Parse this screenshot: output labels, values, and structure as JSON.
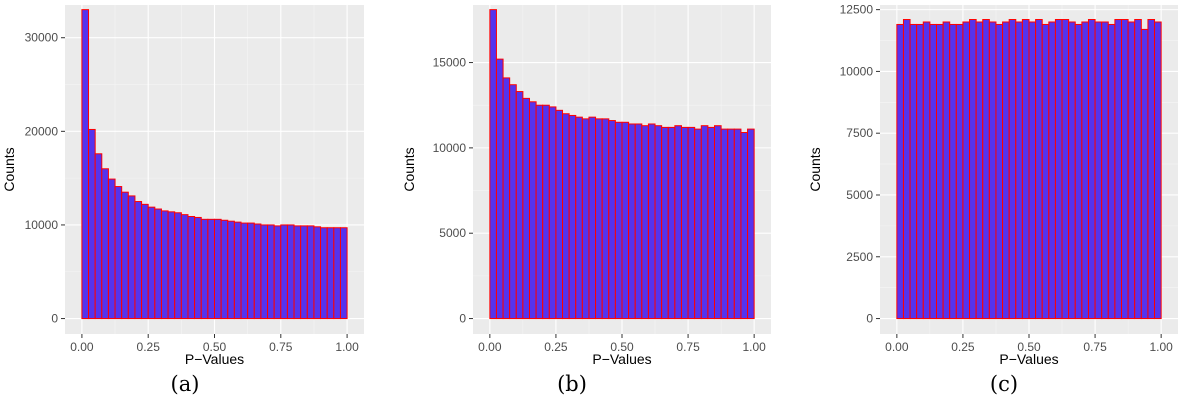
{
  "colors": {
    "bar_fill": "#5533ee",
    "bar_outline": "#ff0000",
    "panel_bg": "#ebebeb",
    "grid": "#ffffff"
  },
  "chart_data": [
    {
      "type": "bar",
      "caption": "(a)",
      "xlabel": "P−Values",
      "ylabel": "Counts",
      "xlim": [
        0,
        1
      ],
      "ylim": [
        0,
        33000
      ],
      "xticks": [
        0,
        0.25,
        0.5,
        0.75,
        1
      ],
      "xtick_labels": [
        "0.00",
        "0.25",
        "0.50",
        "0.75",
        "1.00"
      ],
      "yticks": [
        0,
        10000,
        20000,
        30000
      ],
      "ytick_labels": [
        "0",
        "10000",
        "20000",
        "30000"
      ],
      "grid": true,
      "bin_width": 0.025,
      "values": [
        33000,
        20200,
        17600,
        16000,
        14900,
        14100,
        13500,
        13100,
        12500,
        12200,
        11900,
        11700,
        11500,
        11400,
        11300,
        11100,
        10900,
        10800,
        10600,
        10600,
        10600,
        10500,
        10400,
        10300,
        10200,
        10200,
        10100,
        10000,
        10000,
        9900,
        10000,
        10000,
        9900,
        9900,
        9900,
        9800,
        9700,
        9700,
        9700,
        9700
      ]
    },
    {
      "type": "bar",
      "caption": "(b)",
      "xlabel": "P−Values",
      "ylabel": "Counts",
      "xlim": [
        0,
        1
      ],
      "ylim": [
        0,
        18100
      ],
      "xticks": [
        0,
        0.25,
        0.5,
        0.75,
        1
      ],
      "xtick_labels": [
        "0.00",
        "0.25",
        "0.50",
        "0.75",
        "1.00"
      ],
      "yticks": [
        0,
        5000,
        10000,
        15000
      ],
      "ytick_labels": [
        "0",
        "5000",
        "10000",
        "15000"
      ],
      "grid": true,
      "bin_width": 0.025,
      "values": [
        18100,
        15200,
        14100,
        13700,
        13300,
        12900,
        12700,
        12500,
        12500,
        12400,
        12200,
        12000,
        11900,
        11800,
        11700,
        11800,
        11700,
        11700,
        11600,
        11500,
        11500,
        11400,
        11400,
        11300,
        11400,
        11300,
        11200,
        11200,
        11300,
        11200,
        11200,
        11100,
        11300,
        11200,
        11300,
        11100,
        11100,
        11100,
        10900,
        11100
      ]
    },
    {
      "type": "bar",
      "caption": "(c)",
      "xlabel": "P−Values",
      "ylabel": "Counts",
      "xlim": [
        0,
        1
      ],
      "ylim": [
        0,
        12500
      ],
      "xticks": [
        0,
        0.25,
        0.5,
        0.75,
        1
      ],
      "xtick_labels": [
        "0.00",
        "0.25",
        "0.50",
        "0.75",
        "1.00"
      ],
      "yticks": [
        0,
        2500,
        5000,
        7500,
        10000,
        12500
      ],
      "ytick_labels": [
        "0",
        "2500",
        "5000",
        "7500",
        "10000",
        "12500"
      ],
      "grid": true,
      "bin_width": 0.025,
      "values": [
        11900,
        12100,
        11900,
        11900,
        12000,
        11900,
        11900,
        12000,
        11900,
        11900,
        12000,
        12100,
        12000,
        12100,
        12000,
        11900,
        12000,
        12100,
        12000,
        12100,
        12000,
        12100,
        11900,
        12000,
        12100,
        12100,
        12000,
        11900,
        12000,
        12100,
        12000,
        12000,
        11900,
        12100,
        12100,
        12000,
        12100,
        11700,
        12100,
        12000
      ]
    }
  ]
}
